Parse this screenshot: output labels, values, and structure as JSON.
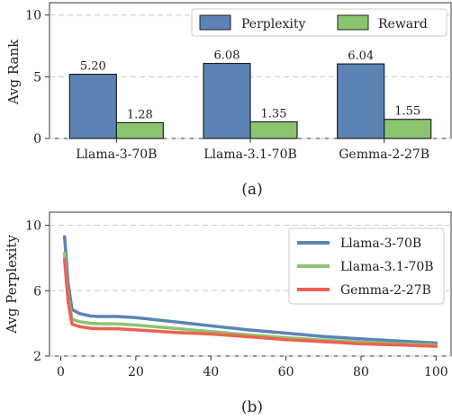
{
  "chart_data": [
    {
      "type": "bar",
      "ylabel": "Avg Rank",
      "ylim": [
        0,
        11
      ],
      "yticks": [
        0,
        5,
        10
      ],
      "grid": "horizontal dashed",
      "legend_position": "top-right",
      "categories": [
        "Llama-3-70B",
        "Llama-3.1-70B",
        "Gemma-2-27B"
      ],
      "series": [
        {
          "name": "Perplexity",
          "color": "#5b84b5",
          "values": [
            5.2,
            6.08,
            6.04
          ],
          "labels": [
            "5.20",
            "6.08",
            "6.04"
          ]
        },
        {
          "name": "Reward",
          "color": "#8bc46f",
          "values": [
            1.28,
            1.35,
            1.55
          ],
          "labels": [
            "1.28",
            "1.35",
            "1.55"
          ]
        }
      ],
      "caption": "(a)"
    },
    {
      "type": "line",
      "ylabel": "Avg Perplexity",
      "xlim": [
        -3,
        104
      ],
      "ylim": [
        2,
        10.8
      ],
      "xticks": [
        0,
        20,
        40,
        60,
        80,
        100
      ],
      "yticks": [
        2,
        6,
        10
      ],
      "grid": "horizontal dashed",
      "legend_position": "top-right",
      "x": [
        1,
        2,
        3,
        5,
        8,
        10,
        15,
        20,
        30,
        40,
        50,
        60,
        70,
        80,
        90,
        100
      ],
      "series": [
        {
          "name": "Llama-3-70B",
          "color": "#5b84b5",
          "values": [
            9.3,
            6.4,
            4.85,
            4.6,
            4.45,
            4.42,
            4.42,
            4.35,
            4.1,
            3.85,
            3.6,
            3.4,
            3.2,
            3.05,
            2.92,
            2.8
          ]
        },
        {
          "name": "Llama-3.1-70B",
          "color": "#8bc46f",
          "values": [
            8.3,
            5.6,
            4.25,
            4.1,
            4.0,
            3.98,
            3.97,
            3.9,
            3.7,
            3.5,
            3.3,
            3.12,
            2.98,
            2.85,
            2.75,
            2.68
          ]
        },
        {
          "name": "Gemma-2-27B",
          "color": "#ee6150",
          "values": [
            7.9,
            5.3,
            3.95,
            3.8,
            3.7,
            3.68,
            3.67,
            3.6,
            3.45,
            3.35,
            3.18,
            3.0,
            2.88,
            2.75,
            2.68,
            2.6
          ]
        }
      ],
      "caption": "(b)"
    }
  ]
}
